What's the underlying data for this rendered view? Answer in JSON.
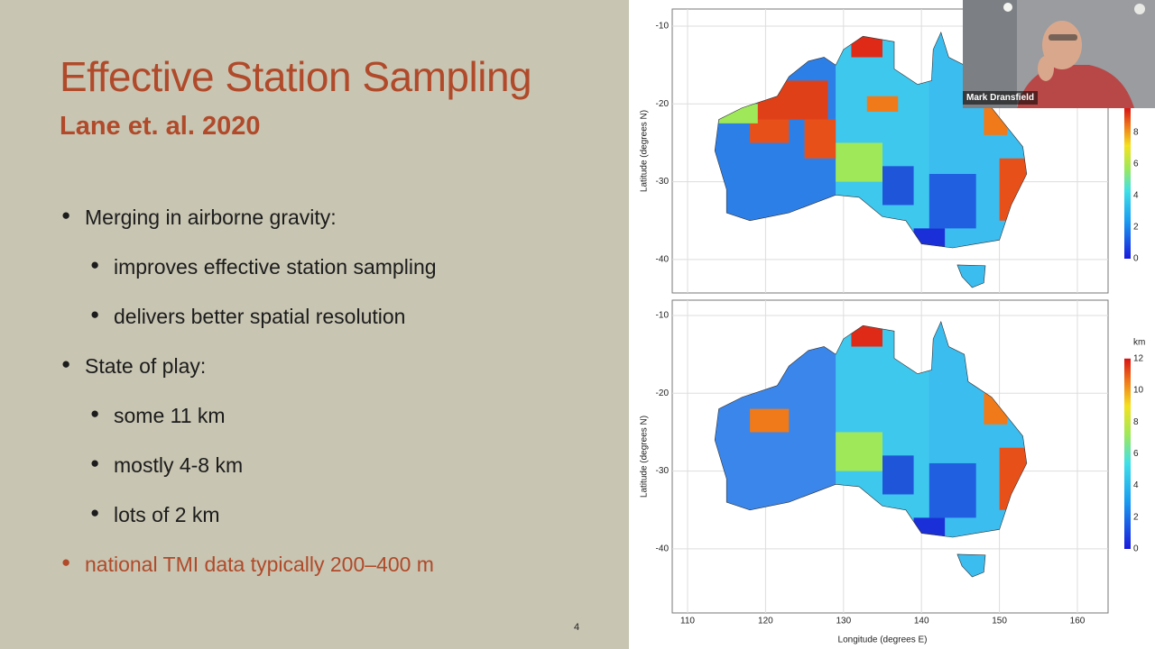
{
  "slide": {
    "title": "Effective Station Sampling",
    "subtitle": "Lane et. al. 2020",
    "bullets": [
      {
        "text": "Merging in airborne gravity:",
        "sub": [
          "improves effective station sampling",
          "delivers better spatial resolution"
        ]
      },
      {
        "text": "State of play:",
        "sub": [
          "some 11 km",
          "mostly 4-8 km",
          "lots of 2 km"
        ]
      },
      {
        "text": "national TMI data typically 200–400 m"
      }
    ],
    "page_number": "4"
  },
  "figure": {
    "maps": [
      {
        "y_label": "Latitude (degrees N)",
        "y_ticks": [
          "-10",
          "-20",
          "-30",
          "-40"
        ],
        "colorbar_ticks": [
          "8",
          "6",
          "4",
          "2",
          "0"
        ]
      },
      {
        "y_label": "Latitude (degrees N)",
        "y_ticks": [
          "-10",
          "-20",
          "-30",
          "-40"
        ],
        "colorbar_unit": "km",
        "colorbar_ticks": [
          "12",
          "10",
          "8",
          "6",
          "4",
          "2",
          "0"
        ]
      }
    ],
    "x_label": "Longitude (degrees E)",
    "x_ticks": [
      "110",
      "120",
      "130",
      "140",
      "150",
      "160"
    ]
  },
  "video": {
    "participant_name": "Mark Dransfield"
  }
}
